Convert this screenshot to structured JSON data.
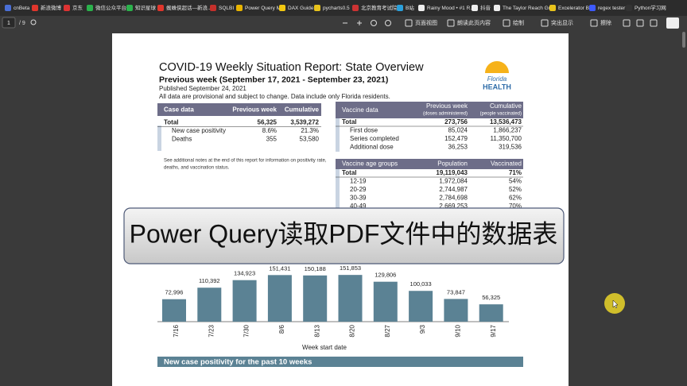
{
  "bookmarks": [
    "cnBeta",
    "新浪微博",
    "京东",
    "微信公众平台",
    "知识星球",
    "蜘蛛侠超话—新浪...",
    "SQLBI",
    "Power Query M",
    "DAX Guide",
    "pycharts0.5",
    "北京教育考试院",
    "B站",
    "Rainy Mood • #1 R...",
    "抖音",
    "The Taylor Reach Gr...",
    "Excelerator BI",
    "regex tester",
    "Python学习网"
  ],
  "toolbar": {
    "page": "1",
    "page_count": "/ 9",
    "buttons": [
      "页面视图",
      "朗读此页内容",
      "绘制",
      "突出显示",
      "擦除"
    ]
  },
  "document": {
    "title": "COVID-19 Weekly Situation Report: State Overview",
    "subtitle": "Previous week (September 17, 2021 - September 23, 2021)",
    "published": "Published September 24, 2021",
    "note": "All data are provisional and subject to change. Data include only Florida residents.",
    "logo": {
      "top": "Florida",
      "bottom": "HEALTH"
    },
    "case_table": {
      "header": [
        "Case data",
        "Previous week",
        "Cumulative"
      ],
      "rows": [
        [
          "Total",
          "56,325",
          "3,539,272"
        ],
        [
          "New case positivity",
          "8.6%",
          "21.3%"
        ],
        [
          "Deaths",
          "355",
          "53,580"
        ]
      ]
    },
    "case_note": [
      "See additional notes at the end of this report for information on positivity rate,",
      "deaths, and vaccination status."
    ],
    "vaccine_table": {
      "header": [
        "Vaccine data",
        "Previous week",
        "Cumulative"
      ],
      "subheader": [
        "(doses administered)",
        "(people vaccinated)"
      ],
      "rows": [
        [
          "Total",
          "273,756",
          "13,536,473"
        ],
        [
          "First dose",
          "85,024",
          "1,866,237"
        ],
        [
          "Series completed",
          "152,479",
          "11,350,700"
        ],
        [
          "Additional dose",
          "36,253",
          "319,536"
        ]
      ]
    },
    "age_table": {
      "header": [
        "Vaccine age groups",
        "Population",
        "Vaccinated"
      ],
      "rows": [
        [
          "Total",
          "19,119,043",
          "71%"
        ],
        [
          "12-19",
          "1,972,084",
          "54%"
        ],
        [
          "20-29",
          "2,744,987",
          "52%"
        ],
        [
          "30-39",
          "2,784,698",
          "62%"
        ],
        [
          "40-49",
          "2,669,253",
          "70%"
        ]
      ]
    },
    "chart": {
      "type": "bar",
      "categories": [
        "7/16",
        "7/23",
        "7/30",
        "8/6",
        "8/13",
        "8/20",
        "8/27",
        "9/3",
        "9/10",
        "9/17"
      ],
      "values": [
        72996,
        110392,
        134923,
        151431,
        150188,
        151853,
        129806,
        100033,
        73847,
        56325
      ],
      "value_labels": [
        "72,996",
        "110,392",
        "134,923",
        "151,431",
        "150,188",
        "151,853",
        "129,806",
        "100,033",
        "73,847",
        "56,325"
      ],
      "color": "#5b8294",
      "xlabel": "Week start date"
    },
    "section_title": "New case positivity for the past 10 weeks"
  },
  "overlay": {
    "text": "Power Query读取PDF文件中的数据表"
  }
}
